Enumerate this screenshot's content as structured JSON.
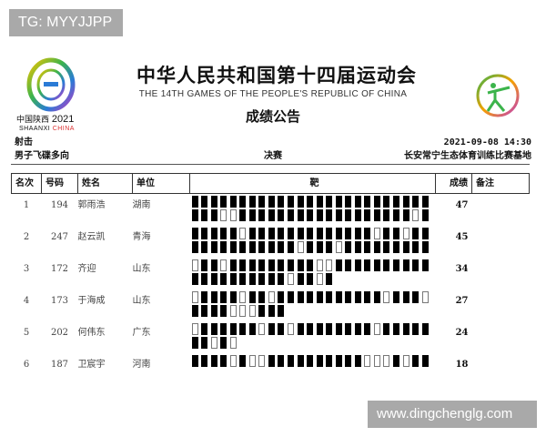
{
  "watermarks": {
    "top_left": "TG: MYYJJPP",
    "bottom_right": "www.dingchenglg.com"
  },
  "header": {
    "title": "中华人民共和国第十四届运动会",
    "subtitle": "THE 14TH GAMES OF THE PEOPLE'S REPUBLIC OF CHINA",
    "heading": "成绩公告",
    "logo_left": {
      "line1_cn": "中国陕西",
      "line1_year": "2021",
      "line2_a": "SHAANXI",
      "line2_b": "CHINA"
    }
  },
  "info": {
    "sport": "射击",
    "datetime": "2021-09-08 14:30",
    "event": "男子飞碟多向",
    "phase": "决赛",
    "venue": "长安常宁生态体育训练比赛基地"
  },
  "table": {
    "columns": [
      "名次",
      "号码",
      "姓名",
      "单位",
      "靶",
      "成绩",
      "备注"
    ],
    "rows": [
      {
        "rank": "1",
        "bib": "194",
        "name": "郭雨浩",
        "team": "湖南",
        "shots": [
          "1111111111111111111111111",
          "1110011111111111111111101"
        ],
        "score": "47",
        "note": ""
      },
      {
        "rank": "2",
        "bib": "247",
        "name": "赵云凯",
        "team": "青海",
        "shots": [
          "1111101111111111111011011",
          "1111111111101110111111111"
        ],
        "score": "45",
        "note": ""
      },
      {
        "rank": "3",
        "bib": "172",
        "name": "齐迎",
        "team": "山东",
        "shots": [
          "0110111111111001111111111",
          "111111111101101"
        ],
        "score": "34",
        "note": ""
      },
      {
        "rank": "4",
        "bib": "173",
        "name": "于海成",
        "team": "山东",
        "shots": [
          "0111101101111111111101110",
          "1111000111"
        ],
        "score": "27",
        "note": ""
      },
      {
        "rank": "5",
        "bib": "202",
        "name": "何伟东",
        "team": "广东",
        "shots": [
          "0111111011011111111011111",
          "11010"
        ],
        "score": "24",
        "note": ""
      },
      {
        "rank": "6",
        "bib": "187",
        "name": "卫宸宇",
        "team": "河南",
        "shots": [
          "1111010011111111110001011"
        ],
        "score": "18",
        "note": ""
      }
    ]
  },
  "colors": {
    "hit": "#000000",
    "miss": "#ffffff",
    "watermark_bg": "#a9a9a9"
  }
}
